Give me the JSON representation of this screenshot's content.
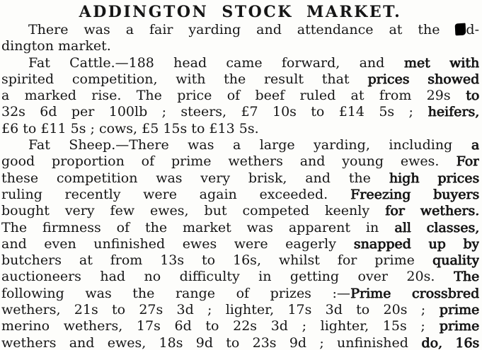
{
  "page": {
    "background": "#fdfdfb",
    "ink_color": "#161616"
  },
  "article": {
    "title": "ADDINGTON STOCK MARKET.",
    "note": "scanned newspaper column; blot marks an ink smudge over the letter A of Addington",
    "lines": [
      {
        "indent": true,
        "justify": true,
        "segments": [
          {
            "t": "There was a fair yarding and attendance at the "
          },
          {
            "blot": true
          },
          {
            "t": "d-"
          }
        ]
      },
      {
        "indent": false,
        "justify": false,
        "segments": [
          {
            "t": "dington market."
          }
        ]
      },
      {
        "indent": true,
        "justify": true,
        "segments": [
          {
            "t": "Fat Cattle.—188 head came forward, and "
          },
          {
            "t": "met with",
            "b": true
          }
        ]
      },
      {
        "indent": false,
        "justify": true,
        "segments": [
          {
            "t": "spirited competition, with the result that "
          },
          {
            "t": "prices showed",
            "b": true
          }
        ]
      },
      {
        "indent": false,
        "justify": true,
        "segments": [
          {
            "t": "a marked rise. The price of beef ruled at from 29s "
          },
          {
            "t": "to",
            "b": true
          }
        ]
      },
      {
        "indent": false,
        "justify": true,
        "segments": [
          {
            "t": "32s 6d per 100lb ; steers, £7 10s to £14 5s ; "
          },
          {
            "t": "heifers,",
            "b": true
          }
        ]
      },
      {
        "indent": false,
        "justify": false,
        "segments": [
          {
            "t": "£6 to £11 5s ; cows, £5 15s to £13 5s."
          }
        ]
      },
      {
        "indent": true,
        "justify": true,
        "segments": [
          {
            "t": "Fat Sheep.—There was a large yarding, including "
          },
          {
            "t": "a",
            "b": true
          }
        ]
      },
      {
        "indent": false,
        "justify": true,
        "segments": [
          {
            "t": "good proportion of prime wethers and young ewes. "
          },
          {
            "t": "For",
            "b": true
          }
        ]
      },
      {
        "indent": false,
        "justify": true,
        "segments": [
          {
            "t": "these competition was very brisk, and the "
          },
          {
            "t": "high prices",
            "b": true
          }
        ]
      },
      {
        "indent": false,
        "justify": true,
        "segments": [
          {
            "t": "ruling recently were again exceeded. "
          },
          {
            "t": "Freezing buyers",
            "b": true
          }
        ]
      },
      {
        "indent": false,
        "justify": true,
        "segments": [
          {
            "t": "bought very few ewes, but competed keenly "
          },
          {
            "t": "for wethers.",
            "b": true
          }
        ]
      },
      {
        "indent": false,
        "justify": true,
        "segments": [
          {
            "t": "The firmness of the market was apparent in "
          },
          {
            "t": "all classes,",
            "b": true
          }
        ]
      },
      {
        "indent": false,
        "justify": true,
        "segments": [
          {
            "t": "and even unfinished ewes were eagerly "
          },
          {
            "t": "snapped up by",
            "b": true
          }
        ]
      },
      {
        "indent": false,
        "justify": true,
        "segments": [
          {
            "t": "butchers at from 13s to 16s, whilst for prime "
          },
          {
            "t": "quality",
            "b": true
          }
        ]
      },
      {
        "indent": false,
        "justify": true,
        "segments": [
          {
            "t": "auctioneers had no difficulty in getting over 20s. "
          },
          {
            "t": "The",
            "b": true
          }
        ]
      },
      {
        "indent": false,
        "justify": true,
        "segments": [
          {
            "t": "following was the range of prizes :—"
          },
          {
            "t": "Prime crossbred",
            "b": true
          }
        ]
      },
      {
        "indent": false,
        "justify": true,
        "segments": [
          {
            "t": "wethers, 21s to 27s 3d ; lighter, 17s 3d to 20s ; "
          },
          {
            "t": "prime",
            "b": true
          }
        ]
      },
      {
        "indent": false,
        "justify": true,
        "segments": [
          {
            "t": "merino wethers, 17s 6d to 22s 3d ; lighter, 15s ; "
          },
          {
            "t": "prime",
            "b": true
          }
        ]
      },
      {
        "indent": false,
        "justify": true,
        "segments": [
          {
            "t": "wethers and ewes, 18s 9d to 23s 9d ; unfinished "
          },
          {
            "t": "do, 16s",
            "b": true
          }
        ]
      }
    ]
  }
}
